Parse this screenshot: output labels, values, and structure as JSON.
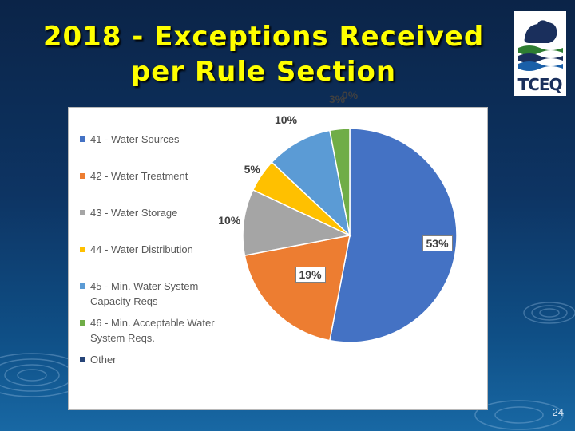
{
  "slide": {
    "title_line1": "2018 - Exceptions Received",
    "title_line2": "per Rule Section",
    "page_number": "24",
    "logo_text": "TCEQ"
  },
  "chart_data": {
    "type": "pie",
    "categories": [
      "41 - Water Sources",
      "42 - Water Treatment",
      "43 - Water Storage",
      "44 - Water Distribution",
      "45 - Min. Water System Capacity Reqs",
      "46 - Min. Acceptable Water System Reqs.",
      "Other"
    ],
    "values": [
      53,
      19,
      10,
      5,
      10,
      3,
      0
    ],
    "labels": [
      "53%",
      "19%",
      "10%",
      "5%",
      "10%",
      "3%",
      "0%"
    ],
    "colors": [
      "#4472c4",
      "#ed7d31",
      "#a5a5a5",
      "#ffc000",
      "#5b9bd5",
      "#70ad47",
      "#264478"
    ],
    "legend_position": "left"
  }
}
